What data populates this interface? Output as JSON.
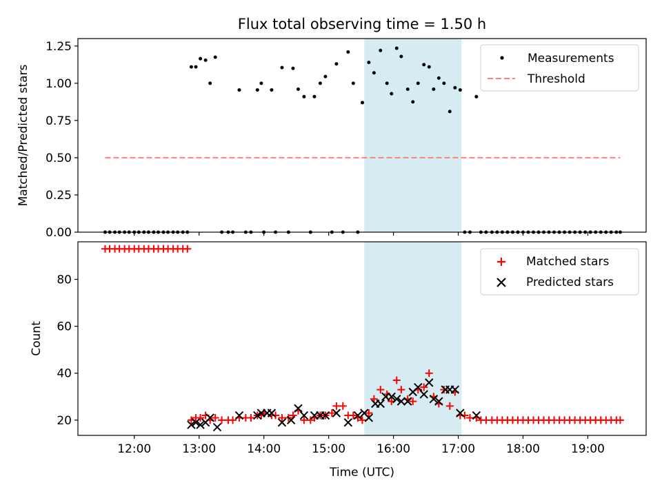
{
  "chart_data": {
    "title": "Flux total observing time = 1.50 h",
    "colors": {
      "matched": "#ff0000",
      "predicted": "#000000",
      "measurements": "#000000",
      "threshold": "#ff7f7f",
      "span": "#add8e6"
    },
    "observing_window": {
      "start_hour": 15.55,
      "end_hour": 17.05
    },
    "xlabel": "Time (UTC)",
    "x_unit": "hours UTC",
    "xlim": [
      11.13,
      19.9
    ],
    "x_ticks": [
      {
        "value": 12,
        "label": "12:00"
      },
      {
        "value": 13,
        "label": "13:00"
      },
      {
        "value": 14,
        "label": "14:00"
      },
      {
        "value": 15,
        "label": "15:00"
      },
      {
        "value": 16,
        "label": "16:00"
      },
      {
        "value": 17,
        "label": "17:00"
      },
      {
        "value": 18,
        "label": "18:00"
      },
      {
        "value": 19,
        "label": "19:00"
      }
    ],
    "top": {
      "type": "scatter",
      "ylabel": "Matched/Predicted stars",
      "ylim": [
        0,
        1.3
      ],
      "y_ticks": [
        {
          "value": 0,
          "label": "0.00"
        },
        {
          "value": 0.25,
          "label": "0.25"
        },
        {
          "value": 0.5,
          "label": "0.50"
        },
        {
          "value": 0.75,
          "label": "0.75"
        },
        {
          "value": 1.0,
          "label": "1.00"
        },
        {
          "value": 1.25,
          "label": "1.25"
        }
      ],
      "legend": {
        "placement": "upper right",
        "entries": [
          "Measurements",
          "Threshold"
        ]
      },
      "threshold": {
        "name": "Threshold",
        "y": 0.5,
        "x_range": [
          11.55,
          19.5
        ]
      },
      "measurements": {
        "name": "Measurements",
        "points": [
          [
            11.55,
            0
          ],
          [
            11.62,
            0
          ],
          [
            11.7,
            0
          ],
          [
            11.77,
            0
          ],
          [
            11.85,
            0
          ],
          [
            11.92,
            0
          ],
          [
            12.0,
            0
          ],
          [
            12.07,
            0
          ],
          [
            12.15,
            0
          ],
          [
            12.22,
            0
          ],
          [
            12.3,
            0
          ],
          [
            12.37,
            0
          ],
          [
            12.45,
            0
          ],
          [
            12.52,
            0
          ],
          [
            12.6,
            0
          ],
          [
            12.67,
            0
          ],
          [
            12.75,
            0
          ],
          [
            12.82,
            0
          ],
          [
            12.88,
            1.11
          ],
          [
            12.95,
            1.11
          ],
          [
            13.02,
            1.165
          ],
          [
            13.1,
            1.155
          ],
          [
            13.17,
            1.0
          ],
          [
            13.25,
            1.175
          ],
          [
            13.35,
            0
          ],
          [
            13.45,
            0
          ],
          [
            13.52,
            0
          ],
          [
            13.62,
            0.955
          ],
          [
            13.72,
            0
          ],
          [
            13.8,
            0
          ],
          [
            13.9,
            0.955
          ],
          [
            13.96,
            1.0
          ],
          [
            14.0,
            0
          ],
          [
            14.12,
            0.955
          ],
          [
            14.18,
            0
          ],
          [
            14.28,
            1.105
          ],
          [
            14.38,
            0
          ],
          [
            14.45,
            1.1
          ],
          [
            14.53,
            0.96
          ],
          [
            14.62,
            0.91
          ],
          [
            14.72,
            0
          ],
          [
            14.78,
            0.91
          ],
          [
            14.87,
            1.0
          ],
          [
            14.95,
            1.045
          ],
          [
            15.05,
            0
          ],
          [
            15.12,
            1.13
          ],
          [
            15.22,
            0
          ],
          [
            15.3,
            1.21
          ],
          [
            15.38,
            1.0
          ],
          [
            15.45,
            0
          ],
          [
            15.52,
            0.87
          ],
          [
            15.62,
            1.14
          ],
          [
            15.7,
            1.07
          ],
          [
            15.8,
            1.22
          ],
          [
            15.9,
            1.0
          ],
          [
            15.97,
            0.93
          ],
          [
            16.05,
            1.235
          ],
          [
            16.12,
            1.18
          ],
          [
            16.22,
            0.96
          ],
          [
            16.3,
            0.875
          ],
          [
            16.38,
            1.0
          ],
          [
            16.47,
            1.125
          ],
          [
            16.55,
            1.11
          ],
          [
            16.62,
            0.96
          ],
          [
            16.7,
            1.035
          ],
          [
            16.78,
            1.0
          ],
          [
            16.87,
            0.81
          ],
          [
            16.95,
            0.97
          ],
          [
            17.03,
            0.955
          ],
          [
            17.1,
            0
          ],
          [
            17.18,
            0
          ],
          [
            17.28,
            0.91
          ],
          [
            17.35,
            0
          ],
          [
            17.43,
            0
          ],
          [
            17.52,
            0
          ],
          [
            17.6,
            0
          ],
          [
            17.68,
            0
          ],
          [
            17.76,
            0
          ],
          [
            17.84,
            0
          ],
          [
            17.92,
            0
          ],
          [
            18.0,
            0
          ],
          [
            18.08,
            0
          ],
          [
            18.16,
            0
          ],
          [
            18.24,
            0
          ],
          [
            18.32,
            0
          ],
          [
            18.4,
            0
          ],
          [
            18.48,
            0
          ],
          [
            18.56,
            0
          ],
          [
            18.64,
            0
          ],
          [
            18.72,
            0
          ],
          [
            18.8,
            0
          ],
          [
            18.88,
            0
          ],
          [
            18.96,
            0
          ],
          [
            19.04,
            0
          ],
          [
            19.12,
            0
          ],
          [
            19.2,
            0
          ],
          [
            19.28,
            0
          ],
          [
            19.36,
            0
          ],
          [
            19.44,
            0
          ],
          [
            19.5,
            0
          ]
        ]
      }
    },
    "bottom": {
      "type": "scatter",
      "ylabel": "Count",
      "ylim": [
        13.5,
        96
      ],
      "y_ticks": [
        {
          "value": 20,
          "label": "20"
        },
        {
          "value": 40,
          "label": "40"
        },
        {
          "value": 60,
          "label": "60"
        },
        {
          "value": 80,
          "label": "80"
        }
      ],
      "legend": {
        "placement": "upper right",
        "entries": [
          "Matched stars",
          "Predicted stars"
        ]
      },
      "matched": {
        "name": "Matched stars",
        "points": [
          [
            11.55,
            93
          ],
          [
            11.62,
            93
          ],
          [
            11.7,
            93
          ],
          [
            11.77,
            93
          ],
          [
            11.85,
            93
          ],
          [
            11.92,
            93
          ],
          [
            12.0,
            93
          ],
          [
            12.07,
            93
          ],
          [
            12.15,
            93
          ],
          [
            12.22,
            93
          ],
          [
            12.3,
            93
          ],
          [
            12.37,
            93
          ],
          [
            12.45,
            93
          ],
          [
            12.52,
            93
          ],
          [
            12.6,
            93
          ],
          [
            12.67,
            93
          ],
          [
            12.75,
            93
          ],
          [
            12.82,
            93
          ],
          [
            12.88,
            20
          ],
          [
            12.95,
            21
          ],
          [
            13.02,
            21
          ],
          [
            13.1,
            22
          ],
          [
            13.17,
            20
          ],
          [
            13.25,
            21
          ],
          [
            13.35,
            20
          ],
          [
            13.45,
            20
          ],
          [
            13.52,
            20
          ],
          [
            13.62,
            21
          ],
          [
            13.72,
            21
          ],
          [
            13.8,
            21
          ],
          [
            13.9,
            22
          ],
          [
            13.96,
            22
          ],
          [
            14.0,
            23
          ],
          [
            14.12,
            22
          ],
          [
            14.18,
            22
          ],
          [
            14.28,
            21
          ],
          [
            14.38,
            21
          ],
          [
            14.45,
            22
          ],
          [
            14.53,
            24
          ],
          [
            14.62,
            20
          ],
          [
            14.72,
            20
          ],
          [
            14.78,
            21
          ],
          [
            14.87,
            22
          ],
          [
            14.95,
            22
          ],
          [
            15.05,
            23
          ],
          [
            15.12,
            26
          ],
          [
            15.22,
            26
          ],
          [
            15.3,
            22
          ],
          [
            15.38,
            22
          ],
          [
            15.45,
            21
          ],
          [
            15.52,
            20
          ],
          [
            15.62,
            23
          ],
          [
            15.7,
            29
          ],
          [
            15.8,
            33
          ],
          [
            15.9,
            31
          ],
          [
            15.97,
            28
          ],
          [
            16.05,
            37
          ],
          [
            16.12,
            33
          ],
          [
            16.22,
            29
          ],
          [
            16.3,
            28
          ],
          [
            16.38,
            33
          ],
          [
            16.47,
            34
          ],
          [
            16.55,
            40
          ],
          [
            16.62,
            30
          ],
          [
            16.7,
            27
          ],
          [
            16.78,
            33
          ],
          [
            16.87,
            26
          ],
          [
            16.95,
            32
          ],
          [
            17.03,
            22
          ],
          [
            17.1,
            22
          ],
          [
            17.18,
            21
          ],
          [
            17.28,
            21
          ],
          [
            17.35,
            20
          ],
          [
            17.43,
            20
          ],
          [
            17.52,
            20
          ],
          [
            17.6,
            20
          ],
          [
            17.68,
            20
          ],
          [
            17.76,
            20
          ],
          [
            17.84,
            20
          ],
          [
            17.92,
            20
          ],
          [
            18.0,
            20
          ],
          [
            18.08,
            20
          ],
          [
            18.16,
            20
          ],
          [
            18.24,
            20
          ],
          [
            18.32,
            20
          ],
          [
            18.4,
            20
          ],
          [
            18.48,
            20
          ],
          [
            18.56,
            20
          ],
          [
            18.64,
            20
          ],
          [
            18.72,
            20
          ],
          [
            18.8,
            20
          ],
          [
            18.88,
            20
          ],
          [
            18.96,
            20
          ],
          [
            19.04,
            20
          ],
          [
            19.12,
            20
          ],
          [
            19.2,
            20
          ],
          [
            19.28,
            20
          ],
          [
            19.36,
            20
          ],
          [
            19.44,
            20
          ],
          [
            19.5,
            20
          ]
        ]
      },
      "predicted": {
        "name": "Predicted stars",
        "points": [
          [
            12.88,
            18
          ],
          [
            12.95,
            19
          ],
          [
            13.02,
            18
          ],
          [
            13.1,
            19
          ],
          [
            13.17,
            21
          ],
          [
            13.28,
            17
          ],
          [
            13.62,
            22
          ],
          [
            13.9,
            22
          ],
          [
            13.96,
            23
          ],
          [
            14.05,
            23
          ],
          [
            14.12,
            23
          ],
          [
            14.28,
            19
          ],
          [
            14.42,
            20
          ],
          [
            14.53,
            25
          ],
          [
            14.62,
            22
          ],
          [
            14.78,
            22
          ],
          [
            14.87,
            22
          ],
          [
            14.95,
            22
          ],
          [
            15.12,
            23
          ],
          [
            15.3,
            19
          ],
          [
            15.45,
            22
          ],
          [
            15.55,
            23
          ],
          [
            15.62,
            21
          ],
          [
            15.72,
            27
          ],
          [
            15.8,
            27
          ],
          [
            15.88,
            30
          ],
          [
            15.97,
            30
          ],
          [
            16.05,
            29
          ],
          [
            16.12,
            28
          ],
          [
            16.22,
            28
          ],
          [
            16.3,
            32
          ],
          [
            16.38,
            34
          ],
          [
            16.47,
            31
          ],
          [
            16.55,
            36
          ],
          [
            16.62,
            29
          ],
          [
            16.7,
            28
          ],
          [
            16.8,
            33
          ],
          [
            16.87,
            33
          ],
          [
            16.95,
            33
          ],
          [
            17.03,
            23
          ],
          [
            17.28,
            22
          ]
        ]
      }
    }
  }
}
